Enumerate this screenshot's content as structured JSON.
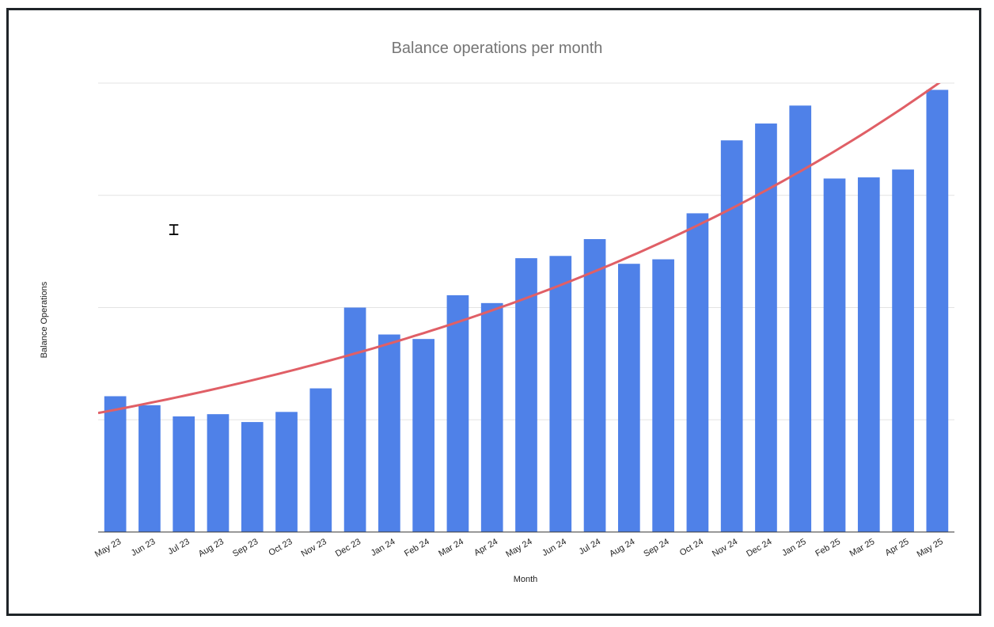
{
  "chart_data": {
    "type": "bar",
    "title": "Balance operations per month",
    "xlabel": "Month",
    "ylabel": "Balance Operations",
    "categories": [
      "May 23",
      "Jun 23",
      "Jul 23",
      "Aug 23",
      "Sep 23",
      "Oct 23",
      "Nov 23",
      "Dec 23",
      "Jan 24",
      "Feb 24",
      "Mar 24",
      "Apr 24",
      "May 24",
      "Jun 24",
      "Jul 24",
      "Aug 24",
      "Sep 24",
      "Oct 24",
      "Nov 24",
      "Dec 24",
      "Jan 25",
      "Feb 25",
      "Mar 25",
      "Apr 25",
      "May 25"
    ],
    "values": [
      1.21,
      1.13,
      1.03,
      1.05,
      0.98,
      1.07,
      1.28,
      2.0,
      1.76,
      1.72,
      2.11,
      2.04,
      2.44,
      2.46,
      2.61,
      2.39,
      2.43,
      2.84,
      3.49,
      3.64,
      3.8,
      3.15,
      3.16,
      3.23,
      3.94
    ],
    "ylim": [
      0,
      4
    ],
    "y_tick_labels_shown": false,
    "grid": true,
    "legend": "none",
    "bar_color": "#4f81e8",
    "trendline": {
      "type": "exponential",
      "color": "#e05f66",
      "start": 1.06,
      "end": 4.1
    }
  }
}
